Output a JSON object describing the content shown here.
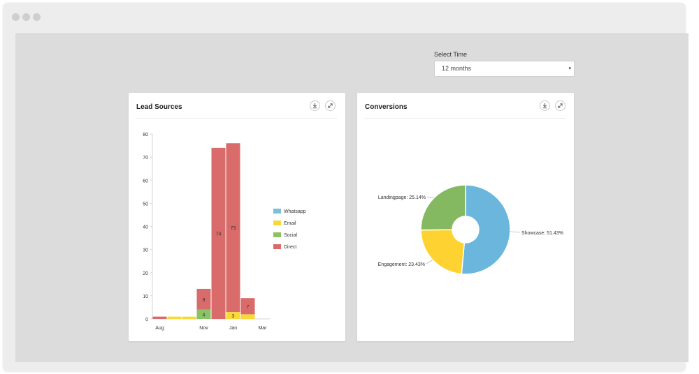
{
  "window": {
    "dots": [
      "dot",
      "dot",
      "dot"
    ]
  },
  "filter": {
    "label": "Select Time",
    "value": "12 months",
    "arrow": "▾"
  },
  "cards": {
    "lead": {
      "title": "Lead Sources",
      "download_icon": "download-icon",
      "expand_icon": "expand-icon"
    },
    "conv": {
      "title": "Conversions",
      "download_icon": "download-icon",
      "expand_icon": "expand-icon"
    }
  },
  "colors": {
    "whatsapp": "#7bbfdb",
    "email": "#f7d93a",
    "social": "#8cc266",
    "direct": "#d96b6b",
    "pie_blue": "#6bb6dc",
    "pie_yellow": "#fed331",
    "pie_green": "#84b962"
  },
  "chart_data": [
    {
      "type": "bar",
      "stacked": true,
      "categories": [
        "Aug",
        "Sep",
        "Oct",
        "Nov",
        "Dec",
        "Jan",
        "Feb",
        "Mar"
      ],
      "x_tick_labels": [
        "Aug",
        "Nov",
        "Jan",
        "Mar"
      ],
      "ylim": [
        0,
        80
      ],
      "yticks": [
        0,
        10,
        20,
        30,
        40,
        50,
        60,
        70,
        80
      ],
      "legend": {
        "position": "right",
        "items": [
          "Whatsapp",
          "Email",
          "Social",
          "Direct"
        ]
      },
      "series": [
        {
          "name": "Whatsapp",
          "values": [
            0,
            0,
            0,
            0,
            0,
            0,
            0,
            0
          ]
        },
        {
          "name": "Email",
          "values": [
            0,
            1,
            1,
            0,
            0,
            3,
            2,
            0
          ]
        },
        {
          "name": "Social",
          "values": [
            0,
            0,
            0,
            4,
            0,
            0,
            0,
            0
          ]
        },
        {
          "name": "Direct",
          "values": [
            1,
            0,
            0,
            9,
            74,
            73,
            7,
            0
          ]
        }
      ],
      "data_labels": [
        {
          "category": "Nov",
          "series": "Social",
          "text": "4"
        },
        {
          "category": "Nov",
          "series": "Direct",
          "text": "9"
        },
        {
          "category": "Dec",
          "series": "Direct",
          "text": "74"
        },
        {
          "category": "Jan",
          "series": "Email",
          "text": "3"
        },
        {
          "category": "Jan",
          "series": "Direct",
          "text": "73"
        },
        {
          "category": "Feb",
          "series": "Direct",
          "text": "7"
        }
      ]
    },
    {
      "type": "pie",
      "donut": true,
      "slices": [
        {
          "label": "Showcase",
          "value": 51.43,
          "display": "Showcase: 51.43%"
        },
        {
          "label": "Engagement",
          "value": 23.43,
          "display": "Engagement: 23.43%"
        },
        {
          "label": "Landingpage",
          "value": 25.14,
          "display": "Landingpage: 25.14%"
        }
      ]
    }
  ]
}
